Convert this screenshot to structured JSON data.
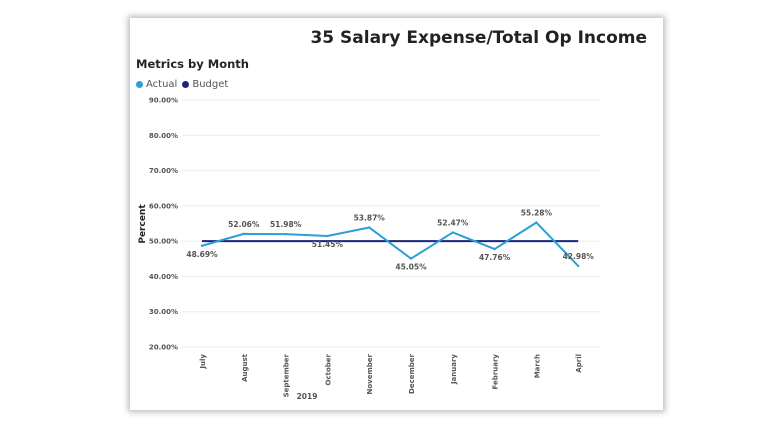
{
  "title": "35 Salary Expense/Total Op Income",
  "subtitle": "Metrics by Month",
  "colors": {
    "actual": "#2b9fd8",
    "budget": "#1a237e",
    "grid": "#ececec",
    "text": "#555555"
  },
  "chart_data": {
    "type": "line",
    "categories": [
      "July",
      "August",
      "September",
      "October",
      "November",
      "December",
      "January",
      "February",
      "March",
      "April"
    ],
    "x_group_label": "2019",
    "ylabel": "Percent",
    "xlabel": "",
    "ylim": [
      20,
      90
    ],
    "yticks": [
      20,
      30,
      40,
      50,
      60,
      70,
      80,
      90
    ],
    "ytick_labels": [
      "20.00%",
      "30.00%",
      "40.00%",
      "50.00%",
      "60.00%",
      "70.00%",
      "80.00%",
      "90.00%"
    ],
    "grid": true,
    "legend_position": "top-left",
    "series": [
      {
        "name": "Actual",
        "values": [
          48.69,
          52.06,
          51.98,
          51.45,
          53.87,
          45.05,
          52.47,
          47.76,
          55.28,
          42.98
        ],
        "data_labels": [
          "48.69%",
          "52.06%",
          "51.98%",
          "51.45%",
          "53.87%",
          "45.05%",
          "52.47%",
          "47.76%",
          "55.28%",
          "42.98%"
        ]
      },
      {
        "name": "Budget",
        "values": [
          50,
          50,
          50,
          50,
          50,
          50,
          50,
          50,
          50,
          50
        ]
      }
    ]
  }
}
